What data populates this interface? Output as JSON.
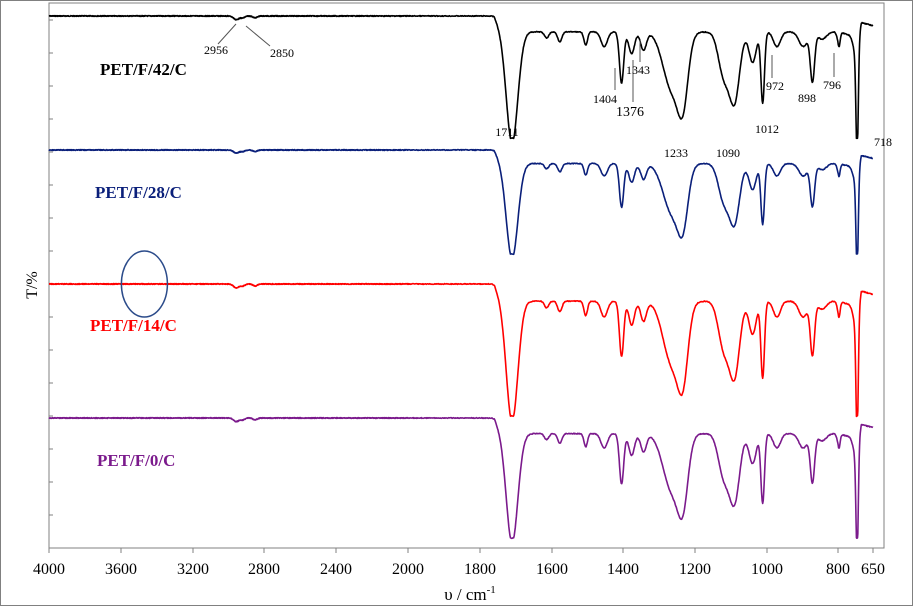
{
  "chart_data": {
    "type": "line",
    "title": "",
    "xlabel": "υ / cm",
    "xlabel_sup": "-1",
    "ylabel": "T/%",
    "x_range": [
      4000,
      650
    ],
    "x_reversed": true,
    "x_ticks": [
      4000,
      3600,
      3200,
      2800,
      2400,
      2000,
      1800,
      1600,
      1400,
      1200,
      1000,
      800,
      650
    ],
    "x_tick_labels": [
      "4000",
      "3600",
      "3200",
      "2800",
      "2400",
      "2000",
      "1800",
      "1600",
      "1400",
      "1200",
      "1000",
      "800",
      "650"
    ],
    "y_ticks_labeled": false,
    "grid": false,
    "legend": "inline labels beside each trace",
    "series": [
      {
        "name": "PET/F/42/C",
        "color": "#000000"
      },
      {
        "name": "PET/F/28/C",
        "color": "#0a1f7a"
      },
      {
        "name": "PET/F/14/C",
        "color": "#ff0000"
      },
      {
        "name": "PET/F/0/C",
        "color": "#7b1a8c"
      }
    ],
    "peak_shape": {
      "bands": [
        {
          "center": 2956,
          "width": 15,
          "depth": 0.03
        },
        {
          "center": 2920,
          "width": 12,
          "depth": 0.015
        },
        {
          "center": 2850,
          "width": 12,
          "depth": 0.015
        },
        {
          "center": 1711,
          "width": 16,
          "depth": 0.92
        },
        {
          "center": 1615,
          "width": 6,
          "depth": 0.05
        },
        {
          "center": 1578,
          "width": 6,
          "depth": 0.08
        },
        {
          "center": 1505,
          "width": 5,
          "depth": 0.11
        },
        {
          "center": 1453,
          "width": 9,
          "depth": 0.12
        },
        {
          "center": 1404,
          "width": 6,
          "depth": 0.42
        },
        {
          "center": 1376,
          "width": 8,
          "depth": 0.18
        },
        {
          "center": 1343,
          "width": 8,
          "depth": 0.15
        },
        {
          "center": 1263,
          "width": 25,
          "depth": 0.48
        },
        {
          "center": 1233,
          "width": 14,
          "depth": 0.45
        },
        {
          "center": 1120,
          "width": 15,
          "depth": 0.35
        },
        {
          "center": 1090,
          "width": 14,
          "depth": 0.55
        },
        {
          "center": 1040,
          "width": 10,
          "depth": 0.25
        },
        {
          "center": 1012,
          "width": 5,
          "depth": 0.58
        },
        {
          "center": 972,
          "width": 10,
          "depth": 0.12
        },
        {
          "center": 898,
          "width": 12,
          "depth": 0.12
        },
        {
          "center": 872,
          "width": 6,
          "depth": 0.4
        },
        {
          "center": 845,
          "width": 12,
          "depth": 0.06
        },
        {
          "center": 796,
          "width": 5,
          "depth": 0.12
        },
        {
          "center": 727,
          "width": 10,
          "depth": 0.12
        },
        {
          "center": 718,
          "width": 5,
          "depth": 0.92
        }
      ],
      "wide_absorption": {
        "from": 1760,
        "to": 700,
        "depth": 0.13
      }
    },
    "annotations": [
      {
        "text": "2956",
        "wavenumber": 2956
      },
      {
        "text": "2850",
        "wavenumber": 2850
      },
      {
        "text": "1711",
        "wavenumber": 1711
      },
      {
        "text": "1404",
        "wavenumber": 1404
      },
      {
        "text": "1376",
        "wavenumber": 1376
      },
      {
        "text": "1343",
        "wavenumber": 1343
      },
      {
        "text": "1233",
        "wavenumber": 1233
      },
      {
        "text": "1090",
        "wavenumber": 1090
      },
      {
        "text": "1012",
        "wavenumber": 1012
      },
      {
        "text": "972",
        "wavenumber": 972
      },
      {
        "text": "898",
        "wavenumber": 898
      },
      {
        "text": "796",
        "wavenumber": 796
      },
      {
        "text": "718",
        "wavenumber": 718
      }
    ],
    "highlight": {
      "shape": "ellipse",
      "color": "#2b4b8a",
      "wavenumber": 3470,
      "on_series": "PET/F/14/C"
    }
  }
}
